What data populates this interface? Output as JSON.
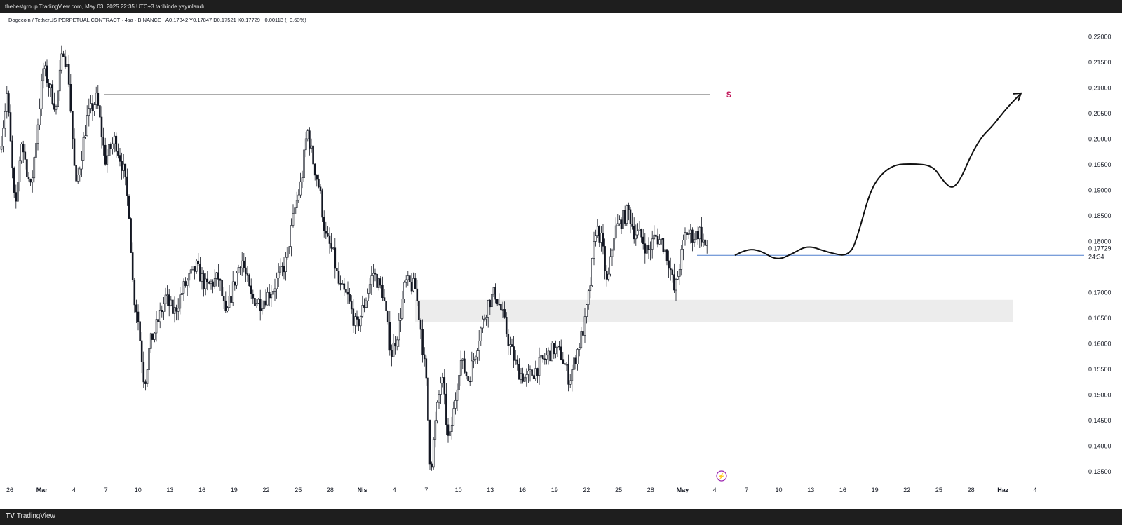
{
  "header": {
    "text": "thebestgroup TradingView.com, May 03, 2025 22:35 UTC+3 tarihinde yayınlandı"
  },
  "footer": {
    "brand": "TradingView",
    "logo": "TV"
  },
  "chart_data": {
    "type": "candlestick",
    "title": "Dogecoin / TetherUS PERPETUAL CONTRACT · 4sa · BINANCE",
    "ohlc_text": "A0,17842  Y0,17847  D0,17521  K0,17729  −0,00113 (−0,63%)",
    "current_price": "0,17729",
    "countdown": "24:34",
    "y_ticks": [
      "0,22000",
      "0,21500",
      "0,21000",
      "0,20500",
      "0,20000",
      "0,19500",
      "0,19000",
      "0,18500",
      "0,18000",
      "0,17000",
      "0,16500",
      "0,16000",
      "0,15500",
      "0,15000",
      "0,14500",
      "0,14000",
      "0,13500"
    ],
    "y_tick_values": [
      0.22,
      0.215,
      0.21,
      0.205,
      0.2,
      0.195,
      0.19,
      0.185,
      0.18,
      0.17,
      0.165,
      0.16,
      0.155,
      0.15,
      0.145,
      0.14,
      0.135
    ],
    "ylim": [
      0.132,
      0.2235
    ],
    "x_labels": [
      "26",
      "Mar",
      "4",
      "7",
      "10",
      "13",
      "16",
      "19",
      "22",
      "25",
      "28",
      "Nis",
      "4",
      "7",
      "10",
      "13",
      "16",
      "19",
      "22",
      "25",
      "28",
      "May",
      "4",
      "7",
      "10",
      "13",
      "16",
      "19",
      "22",
      "25",
      "28",
      "Haz",
      "4"
    ],
    "x_bold": [
      "Mar",
      "Nis",
      "May",
      "Haz"
    ],
    "anchors": [
      [
        0,
        0.198
      ],
      [
        10,
        0.209
      ],
      [
        22,
        0.185
      ],
      [
        30,
        0.2
      ],
      [
        44,
        0.19
      ],
      [
        62,
        0.214
      ],
      [
        80,
        0.206
      ],
      [
        90,
        0.218
      ],
      [
        98,
        0.212
      ],
      [
        108,
        0.19
      ],
      [
        124,
        0.204
      ],
      [
        138,
        0.208
      ],
      [
        150,
        0.196
      ],
      [
        164,
        0.2
      ],
      [
        176,
        0.194
      ],
      [
        184,
        0.186
      ],
      [
        190,
        0.17
      ],
      [
        196,
        0.166
      ],
      [
        206,
        0.152
      ],
      [
        214,
        0.16
      ],
      [
        222,
        0.163
      ],
      [
        236,
        0.169
      ],
      [
        248,
        0.166
      ],
      [
        262,
        0.171
      ],
      [
        280,
        0.175
      ],
      [
        294,
        0.171
      ],
      [
        312,
        0.173
      ],
      [
        322,
        0.165
      ],
      [
        334,
        0.172
      ],
      [
        344,
        0.177
      ],
      [
        358,
        0.169
      ],
      [
        372,
        0.168
      ],
      [
        390,
        0.171
      ],
      [
        408,
        0.176
      ],
      [
        420,
        0.186
      ],
      [
        430,
        0.192
      ],
      [
        438,
        0.202
      ],
      [
        446,
        0.196
      ],
      [
        456,
        0.19
      ],
      [
        464,
        0.181
      ],
      [
        474,
        0.178
      ],
      [
        484,
        0.171
      ],
      [
        496,
        0.169
      ],
      [
        508,
        0.163
      ],
      [
        520,
        0.168
      ],
      [
        532,
        0.174
      ],
      [
        546,
        0.17
      ],
      [
        558,
        0.158
      ],
      [
        568,
        0.163
      ],
      [
        578,
        0.172
      ],
      [
        592,
        0.171
      ],
      [
        600,
        0.163
      ],
      [
        608,
        0.152
      ],
      [
        614,
        0.135
      ],
      [
        622,
        0.146
      ],
      [
        630,
        0.154
      ],
      [
        640,
        0.14
      ],
      [
        648,
        0.148
      ],
      [
        656,
        0.157
      ],
      [
        668,
        0.153
      ],
      [
        684,
        0.162
      ],
      [
        696,
        0.168
      ],
      [
        706,
        0.17
      ],
      [
        716,
        0.166
      ],
      [
        726,
        0.16
      ],
      [
        738,
        0.155
      ],
      [
        750,
        0.153
      ],
      [
        764,
        0.155
      ],
      [
        776,
        0.157
      ],
      [
        790,
        0.159
      ],
      [
        800,
        0.158
      ],
      [
        812,
        0.153
      ],
      [
        824,
        0.159
      ],
      [
        834,
        0.164
      ],
      [
        842,
        0.172
      ],
      [
        850,
        0.183
      ],
      [
        858,
        0.18
      ],
      [
        866,
        0.171
      ],
      [
        876,
        0.182
      ],
      [
        886,
        0.184
      ],
      [
        896,
        0.186
      ],
      [
        904,
        0.182
      ],
      [
        914,
        0.181
      ],
      [
        924,
        0.178
      ],
      [
        934,
        0.181
      ],
      [
        944,
        0.18
      ],
      [
        954,
        0.176
      ],
      [
        962,
        0.17
      ],
      [
        970,
        0.176
      ],
      [
        978,
        0.182
      ],
      [
        988,
        0.181
      ],
      [
        998,
        0.182
      ],
      [
        1010,
        0.1773
      ]
    ],
    "key_level": {
      "price": 0.2087,
      "label": "$"
    },
    "support_line": {
      "price": 0.1773
    },
    "zone": {
      "from": 0.1643,
      "to": 0.1686
    },
    "projection": [
      [
        1048,
        0.1773
      ],
      [
        1065,
        0.1786
      ],
      [
        1085,
        0.1782
      ],
      [
        1108,
        0.1763
      ],
      [
        1130,
        0.1776
      ],
      [
        1152,
        0.1793
      ],
      [
        1180,
        0.1779
      ],
      [
        1212,
        0.177
      ],
      [
        1225,
        0.182
      ],
      [
        1240,
        0.1895
      ],
      [
        1255,
        0.193
      ],
      [
        1275,
        0.195
      ],
      [
        1300,
        0.1952
      ],
      [
        1330,
        0.1949
      ],
      [
        1345,
        0.1918
      ],
      [
        1358,
        0.1902
      ],
      [
        1370,
        0.1922
      ],
      [
        1385,
        0.197
      ],
      [
        1400,
        0.2005
      ],
      [
        1415,
        0.2025
      ],
      [
        1435,
        0.206
      ],
      [
        1456,
        0.209
      ]
    ],
    "colors": {
      "candle": "#131722",
      "support": "#4e7fcd",
      "zone": "#ececec",
      "key_line": "#7a7a7a",
      "key_label": "#c2185b",
      "marker": "#9c27b0"
    },
    "grid": false
  }
}
